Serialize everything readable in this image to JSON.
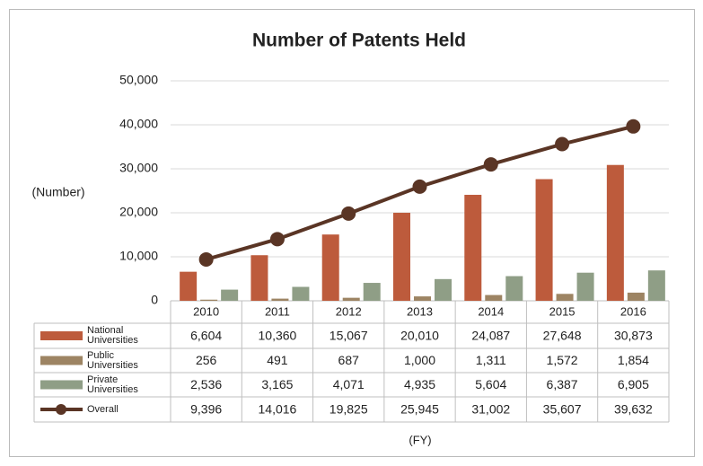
{
  "chart_data": {
    "type": "bar",
    "title": "Number of Patents Held",
    "y_label": "(Number)",
    "x_label": "(FY)",
    "categories": [
      "2010",
      "2011",
      "2012",
      "2013",
      "2014",
      "2015",
      "2016"
    ],
    "series": [
      {
        "name": "National Universities",
        "color": "#bd5b3c",
        "values": [
          6604,
          10360,
          15067,
          20010,
          24087,
          27648,
          30873
        ],
        "value_labels": [
          "6,604",
          "10,360",
          "15,067",
          "20,010",
          "24,087",
          "27,648",
          "30,873"
        ]
      },
      {
        "name": "Public Universities",
        "color": "#9d8463",
        "values": [
          256,
          491,
          687,
          1000,
          1311,
          1572,
          1854
        ],
        "value_labels": [
          "256",
          "491",
          "687",
          "1,000",
          "1,311",
          "1,572",
          "1,854"
        ]
      },
      {
        "name": "Private Universities",
        "color": "#8f9e86",
        "values": [
          2536,
          3165,
          4071,
          4935,
          5604,
          6387,
          6905
        ],
        "value_labels": [
          "2,536",
          "3,165",
          "4,071",
          "4,935",
          "5,604",
          "6,387",
          "6,905"
        ]
      },
      {
        "name": "Overall",
        "type": "line",
        "color": "#5a3525",
        "values": [
          9396,
          14016,
          19825,
          25945,
          31002,
          35607,
          39632
        ],
        "value_labels": [
          "9,396",
          "14,016",
          "19,825",
          "25,945",
          "31,002",
          "35,607",
          "39,632"
        ]
      }
    ],
    "ylim": [
      0,
      50000
    ],
    "yticks": [
      0,
      {
        "value": 10000,
        "label": "10,000"
      },
      {
        "value": 20000,
        "label": "20,000"
      },
      {
        "value": 30000,
        "label": "30,000"
      },
      {
        "value": 40000,
        "label": "40,000"
      },
      {
        "value": 50000,
        "label": "50,000"
      }
    ],
    "grid": true
  }
}
